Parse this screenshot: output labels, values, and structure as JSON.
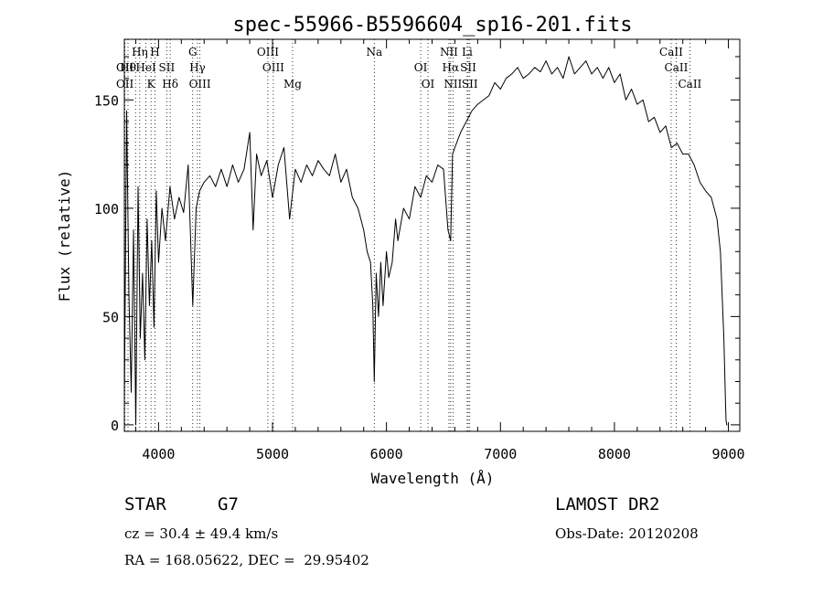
{
  "chart_data": {
    "type": "line",
    "title": "spec-55966-B5596604_sp16-201.fits",
    "xlabel": "Wavelength (Å)",
    "ylabel": "Flux (relative)",
    "xlim": [
      3700,
      9100
    ],
    "ylim": [
      -3,
      178
    ],
    "xticks": [
      4000,
      5000,
      6000,
      7000,
      8000,
      9000
    ],
    "yticks": [
      0,
      50,
      100,
      150
    ],
    "grid": false,
    "spectrum": {
      "x": [
        3700,
        3720,
        3740,
        3760,
        3780,
        3800,
        3820,
        3840,
        3860,
        3880,
        3900,
        3920,
        3940,
        3960,
        3980,
        4000,
        4030,
        4060,
        4100,
        4140,
        4180,
        4220,
        4260,
        4300,
        4330,
        4360,
        4400,
        4450,
        4500,
        4550,
        4600,
        4650,
        4700,
        4750,
        4800,
        4830,
        4860,
        4900,
        4950,
        5000,
        5050,
        5100,
        5150,
        5200,
        5250,
        5300,
        5350,
        5400,
        5450,
        5500,
        5550,
        5600,
        5650,
        5700,
        5750,
        5800,
        5830,
        5860,
        5880,
        5893,
        5910,
        5930,
        5950,
        5970,
        6000,
        6020,
        6050,
        6080,
        6100,
        6150,
        6200,
        6250,
        6300,
        6350,
        6400,
        6450,
        6500,
        6540,
        6563,
        6580,
        6600,
        6650,
        6700,
        6750,
        6800,
        6850,
        6900,
        6950,
        7000,
        7050,
        7100,
        7150,
        7200,
        7250,
        7300,
        7350,
        7400,
        7450,
        7500,
        7550,
        7600,
        7650,
        7700,
        7750,
        7800,
        7850,
        7900,
        7950,
        8000,
        8050,
        8100,
        8150,
        8200,
        8250,
        8300,
        8350,
        8400,
        8450,
        8500,
        8550,
        8600,
        8650,
        8700,
        8750,
        8800,
        8850,
        8900,
        8930,
        8960,
        8975,
        8980,
        8985,
        8990
      ],
      "y": [
        10,
        145,
        60,
        15,
        90,
        0,
        110,
        40,
        70,
        30,
        95,
        55,
        85,
        45,
        108,
        75,
        100,
        85,
        110,
        95,
        105,
        98,
        120,
        55,
        100,
        108,
        112,
        115,
        110,
        118,
        110,
        120,
        112,
        118,
        135,
        90,
        125,
        115,
        122,
        105,
        120,
        128,
        95,
        118,
        112,
        120,
        115,
        122,
        118,
        115,
        125,
        112,
        118,
        105,
        100,
        90,
        80,
        75,
        55,
        20,
        70,
        50,
        75,
        55,
        80,
        68,
        75,
        95,
        85,
        100,
        95,
        110,
        105,
        115,
        112,
        120,
        118,
        90,
        85,
        125,
        128,
        135,
        140,
        145,
        148,
        150,
        152,
        158,
        155,
        160,
        162,
        165,
        160,
        162,
        165,
        163,
        168,
        162,
        165,
        160,
        170,
        162,
        165,
        168,
        162,
        165,
        160,
        165,
        158,
        162,
        150,
        155,
        148,
        150,
        140,
        142,
        135,
        138,
        128,
        130,
        125,
        125,
        120,
        112,
        108,
        105,
        95,
        80,
        40,
        10,
        2,
        0,
        0
      ]
    },
    "lines": [
      {
        "x": 3705,
        "labels": [
          "OII",
          "OII"
        ]
      },
      {
        "x": 3732,
        "labels": [
          "Hθ"
        ]
      },
      {
        "x": 3798,
        "labels": []
      },
      {
        "x": 3835,
        "labels": [
          "Hη"
        ]
      },
      {
        "x": 3889,
        "labels": [
          "HeI"
        ]
      },
      {
        "x": 3934,
        "labels": [
          "K"
        ]
      },
      {
        "x": 3969,
        "labels": [
          "H"
        ]
      },
      {
        "x": 4072,
        "labels": [
          "SII"
        ]
      },
      {
        "x": 4102,
        "labels": [
          "Hδ"
        ]
      },
      {
        "x": 4300,
        "labels": [
          "G"
        ]
      },
      {
        "x": 4341,
        "labels": [
          "Hγ"
        ]
      },
      {
        "x": 4363,
        "labels": [
          "OIII"
        ]
      },
      {
        "x": 4959,
        "labels": [
          "OIII"
        ]
      },
      {
        "x": 5007,
        "labels": [
          "OIII"
        ]
      },
      {
        "x": 5176,
        "labels": [
          "Mg"
        ]
      },
      {
        "x": 5893,
        "labels": [
          "Na"
        ]
      },
      {
        "x": 6300,
        "labels": [
          "OI"
        ]
      },
      {
        "x": 6364,
        "labels": [
          "OI"
        ]
      },
      {
        "x": 6548,
        "labels": [
          "NII"
        ]
      },
      {
        "x": 6563,
        "labels": [
          "Hα"
        ]
      },
      {
        "x": 6583,
        "labels": [
          "NII"
        ]
      },
      {
        "x": 6708,
        "labels": [
          "Li"
        ]
      },
      {
        "x": 6717,
        "labels": [
          "SII"
        ]
      },
      {
        "x": 6731,
        "labels": [
          "SII"
        ]
      },
      {
        "x": 8498,
        "labels": [
          "CaII"
        ]
      },
      {
        "x": 8542,
        "labels": [
          "CaII"
        ]
      },
      {
        "x": 8662,
        "labels": [
          "CaII"
        ]
      }
    ]
  },
  "info": {
    "object_class": "STAR",
    "subclass": "G7",
    "survey": "LAMOST DR2",
    "cz": "cz = 30.4 ± 49.4 km/s",
    "obs_date": "Obs-Date: 20120208",
    "radec": "RA = 168.05622, DEC =  29.95402"
  },
  "colors": {
    "line": "#000000",
    "background": "#ffffff"
  }
}
